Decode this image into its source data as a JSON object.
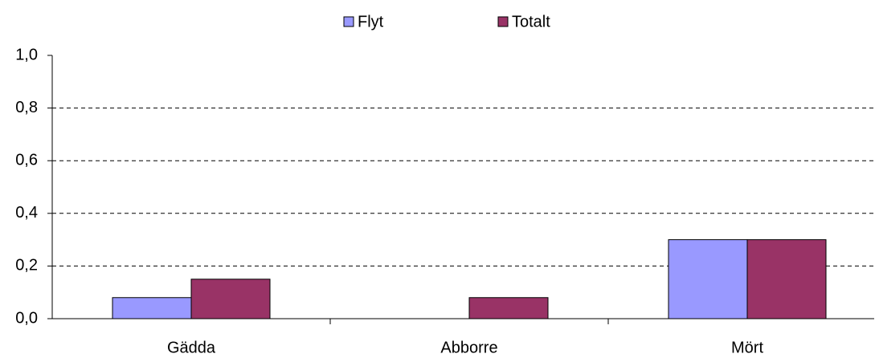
{
  "chart_data": {
    "type": "bar",
    "categories": [
      "Gädda",
      "Abborre",
      "Mört"
    ],
    "series": [
      {
        "name": "Flyt",
        "color": "#9999ff",
        "values": [
          0.08,
          0,
          0.3
        ]
      },
      {
        "name": "Totalt",
        "color": "#993366",
        "values": [
          0.15,
          0.08,
          0.3
        ]
      }
    ],
    "ylim": [
      0,
      1
    ],
    "yticks": [
      {
        "value": 0,
        "label": "0,0"
      },
      {
        "value": 0.2,
        "label": "0,2"
      },
      {
        "value": 0.4,
        "label": "0,4"
      },
      {
        "value": 0.6,
        "label": "0,6"
      },
      {
        "value": 0.8,
        "label": "0,8"
      },
      {
        "value": 1,
        "label": "1,0"
      }
    ],
    "grid": true,
    "legend": "top"
  }
}
